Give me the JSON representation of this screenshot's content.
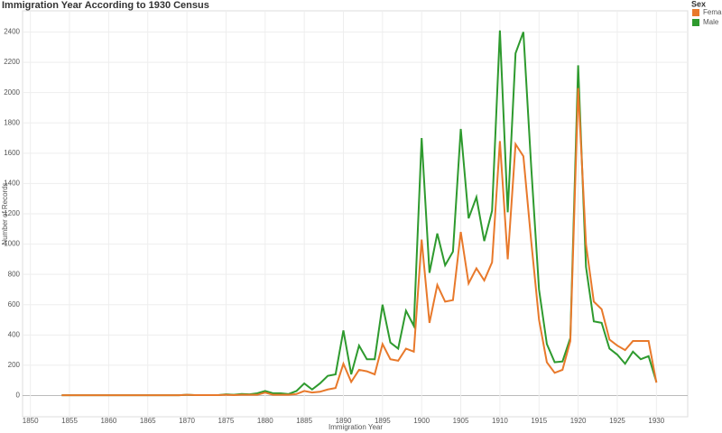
{
  "chart_data": {
    "type": "line",
    "title": "Immigration Year According to 1930 Census",
    "x_label": "Immigration Year",
    "y_label": "Number of Records",
    "legend_title": "Sex",
    "x": [
      1854,
      1855,
      1856,
      1857,
      1858,
      1859,
      1860,
      1861,
      1862,
      1863,
      1864,
      1865,
      1866,
      1867,
      1868,
      1869,
      1870,
      1871,
      1872,
      1873,
      1874,
      1875,
      1876,
      1877,
      1878,
      1879,
      1880,
      1881,
      1882,
      1883,
      1884,
      1885,
      1886,
      1887,
      1888,
      1889,
      1890,
      1891,
      1892,
      1893,
      1894,
      1895,
      1896,
      1897,
      1898,
      1899,
      1900,
      1901,
      1902,
      1903,
      1904,
      1905,
      1906,
      1907,
      1908,
      1909,
      1910,
      1911,
      1912,
      1913,
      1914,
      1915,
      1916,
      1917,
      1918,
      1919,
      1920,
      1921,
      1922,
      1923,
      1924,
      1925,
      1926,
      1927,
      1928,
      1929,
      1930
    ],
    "series": [
      {
        "name": "Female",
        "color": "#e8792b",
        "values": [
          2,
          2,
          2,
          2,
          2,
          2,
          2,
          2,
          2,
          2,
          2,
          2,
          2,
          2,
          2,
          2,
          5,
          3,
          3,
          3,
          3,
          5,
          3,
          5,
          5,
          5,
          20,
          5,
          5,
          5,
          10,
          30,
          20,
          25,
          40,
          50,
          210,
          90,
          170,
          160,
          140,
          340,
          240,
          230,
          310,
          290,
          1030,
          480,
          730,
          620,
          630,
          1080,
          740,
          840,
          760,
          880,
          1680,
          900,
          1660,
          1580,
          1020,
          500,
          220,
          150,
          170,
          360,
          2030,
          1000,
          620,
          570,
          370,
          330,
          300,
          360,
          360,
          360,
          85
        ]
      },
      {
        "name": "Male",
        "color": "#2e9a2e",
        "values": [
          2,
          2,
          2,
          2,
          2,
          2,
          2,
          2,
          2,
          2,
          2,
          2,
          2,
          2,
          2,
          2,
          5,
          3,
          3,
          3,
          3,
          8,
          5,
          10,
          8,
          15,
          30,
          15,
          15,
          10,
          30,
          80,
          40,
          80,
          130,
          140,
          430,
          140,
          330,
          240,
          240,
          600,
          350,
          310,
          560,
          460,
          1700,
          810,
          1070,
          860,
          950,
          1760,
          1170,
          1310,
          1020,
          1220,
          2410,
          1210,
          2260,
          2400,
          1510,
          700,
          340,
          220,
          225,
          380,
          2180,
          850,
          490,
          480,
          310,
          270,
          210,
          290,
          240,
          260,
          90
        ]
      }
    ],
    "xlim": [
      1849,
      1934
    ],
    "ylim": [
      -140,
      2540
    ],
    "xticks": [
      1850,
      1855,
      1860,
      1865,
      1870,
      1875,
      1880,
      1885,
      1890,
      1895,
      1900,
      1905,
      1910,
      1915,
      1920,
      1925,
      1930
    ],
    "yticks": [
      0,
      200,
      400,
      600,
      800,
      1000,
      1200,
      1400,
      1600,
      1800,
      2000,
      2200,
      2400
    ],
    "grid": true,
    "legend": "right"
  }
}
